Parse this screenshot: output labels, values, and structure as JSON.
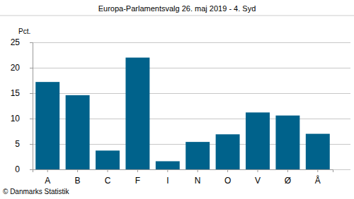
{
  "chart_data": {
    "type": "bar",
    "title": "Europa-Parlamentsvalg 26. maj 2019 - 4. Syd",
    "ylabel": "Pct.",
    "source": "© Danmarks Statistik",
    "categories": [
      "A",
      "B",
      "C",
      "F",
      "I",
      "N",
      "O",
      "V",
      "Ø",
      "Å"
    ],
    "values": [
      17.2,
      14.6,
      3.7,
      22.0,
      1.6,
      5.4,
      6.9,
      11.2,
      10.6,
      7.0
    ],
    "color": "#00628b",
    "ylim": [
      0,
      25
    ],
    "yticks": [
      0,
      5,
      10,
      15,
      20,
      25
    ],
    "grid": true
  }
}
